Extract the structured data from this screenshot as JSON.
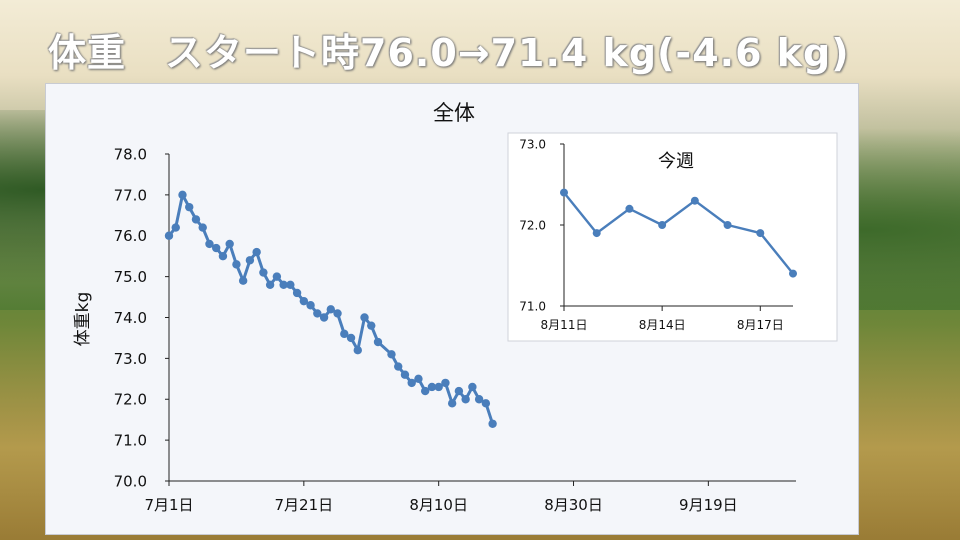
{
  "headline": "体重　スタート時76.0→71.4 kg(-4.6 kg)",
  "chart_data": [
    {
      "type": "line",
      "title": "全体",
      "ylabel": "体重kg",
      "xlabel": "",
      "ylim": [
        70.0,
        78.0
      ],
      "xlim": [
        "2023-07-01",
        "2023-10-02"
      ],
      "yticks": [
        "70.0",
        "71.0",
        "72.0",
        "73.0",
        "74.0",
        "75.0",
        "76.0",
        "77.0",
        "78.0"
      ],
      "xticks": [
        {
          "date": "2023-07-01",
          "label": "7月1日"
        },
        {
          "date": "2023-07-21",
          "label": "7月21日"
        },
        {
          "date": "2023-08-10",
          "label": "8月10日"
        },
        {
          "date": "2023-08-30",
          "label": "8月30日"
        },
        {
          "date": "2023-09-19",
          "label": "9月19日"
        }
      ],
      "color": "#4a7ebb",
      "grid": false,
      "points": [
        [
          "2023-07-01",
          76.0
        ],
        [
          "2023-07-02",
          76.2
        ],
        [
          "2023-07-03",
          77.0
        ],
        [
          "2023-07-04",
          76.7
        ],
        [
          "2023-07-05",
          76.4
        ],
        [
          "2023-07-06",
          76.2
        ],
        [
          "2023-07-07",
          75.8
        ],
        [
          "2023-07-08",
          75.7
        ],
        [
          "2023-07-09",
          75.5
        ],
        [
          "2023-07-10",
          75.8
        ],
        [
          "2023-07-11",
          75.3
        ],
        [
          "2023-07-12",
          74.9
        ],
        [
          "2023-07-13",
          75.4
        ],
        [
          "2023-07-14",
          75.6
        ],
        [
          "2023-07-15",
          75.1
        ],
        [
          "2023-07-16",
          74.8
        ],
        [
          "2023-07-17",
          75.0
        ],
        [
          "2023-07-18",
          74.8
        ],
        [
          "2023-07-19",
          74.8
        ],
        [
          "2023-07-20",
          74.6
        ],
        [
          "2023-07-21",
          74.4
        ],
        [
          "2023-07-22",
          74.3
        ],
        [
          "2023-07-23",
          74.1
        ],
        [
          "2023-07-24",
          74.0
        ],
        [
          "2023-07-25",
          74.2
        ],
        [
          "2023-07-26",
          74.1
        ],
        [
          "2023-07-27",
          73.6
        ],
        [
          "2023-07-28",
          73.5
        ],
        [
          "2023-07-29",
          73.2
        ],
        [
          "2023-07-30",
          74.0
        ],
        [
          "2023-07-31",
          73.8
        ],
        [
          "2023-08-01",
          73.4
        ],
        [
          "2023-08-03",
          73.1
        ],
        [
          "2023-08-04",
          72.8
        ],
        [
          "2023-08-05",
          72.6
        ],
        [
          "2023-08-06",
          72.4
        ],
        [
          "2023-08-07",
          72.5
        ],
        [
          "2023-08-08",
          72.2
        ],
        [
          "2023-08-09",
          72.3
        ],
        [
          "2023-08-10",
          72.3
        ],
        [
          "2023-08-11",
          72.4
        ],
        [
          "2023-08-12",
          71.9
        ],
        [
          "2023-08-13",
          72.2
        ],
        [
          "2023-08-14",
          72.0
        ],
        [
          "2023-08-15",
          72.3
        ],
        [
          "2023-08-16",
          72.0
        ],
        [
          "2023-08-17",
          71.9
        ],
        [
          "2023-08-18",
          71.4
        ]
      ]
    },
    {
      "type": "line",
      "title": "今週",
      "ylim": [
        71.0,
        73.0
      ],
      "yticks": [
        "71.0",
        "72.0",
        "73.0"
      ],
      "xlim": [
        "2023-08-11",
        "2023-08-18"
      ],
      "xticks": [
        {
          "date": "2023-08-11",
          "label": "8月11日"
        },
        {
          "date": "2023-08-14",
          "label": "8月14日"
        },
        {
          "date": "2023-08-17",
          "label": "8月17日"
        }
      ],
      "color": "#4a7ebb",
      "grid": false,
      "points": [
        [
          "2023-08-11",
          72.4
        ],
        [
          "2023-08-12",
          71.9
        ],
        [
          "2023-08-13",
          72.2
        ],
        [
          "2023-08-14",
          72.0
        ],
        [
          "2023-08-15",
          72.3
        ],
        [
          "2023-08-16",
          72.0
        ],
        [
          "2023-08-17",
          71.9
        ],
        [
          "2023-08-18",
          71.4
        ]
      ]
    }
  ]
}
